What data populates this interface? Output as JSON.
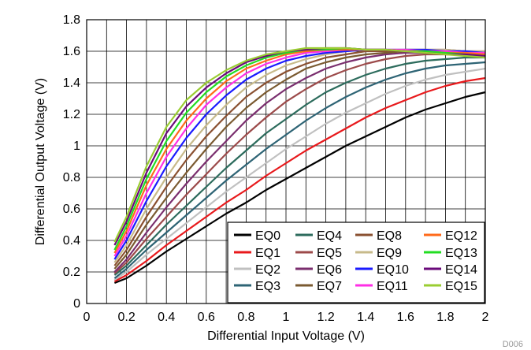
{
  "figure_id": "D006",
  "chart_data": {
    "type": "line",
    "xlabel": "Differential Input Voltage (V)",
    "ylabel": "Differential Output Voltage (V)",
    "xlim": [
      0,
      2
    ],
    "ylim": [
      0,
      1.8
    ],
    "xticks": [
      "0",
      "0.2",
      "0.4",
      "0.6",
      "0.8",
      "1",
      "1.2",
      "1.4",
      "1.6",
      "1.8",
      "2"
    ],
    "yticks": [
      "0",
      "0.2",
      "0.4",
      "0.6",
      "0.8",
      "1",
      "1.2",
      "1.4",
      "1.6",
      "1.8"
    ],
    "x_minor_step": 0.1,
    "grid": true,
    "legend_position": "bottom-right",
    "x": [
      0.14,
      0.2,
      0.3,
      0.4,
      0.5,
      0.6,
      0.7,
      0.8,
      0.9,
      1.0,
      1.1,
      1.2,
      1.3,
      1.4,
      1.5,
      1.6,
      1.7,
      1.8,
      1.9,
      2.0
    ],
    "series": [
      {
        "name": "EQ0",
        "color": "#000000",
        "values": [
          0.13,
          0.16,
          0.24,
          0.33,
          0.41,
          0.49,
          0.57,
          0.64,
          0.72,
          0.79,
          0.86,
          0.93,
          1.0,
          1.06,
          1.12,
          1.18,
          1.23,
          1.27,
          1.31,
          1.34
        ]
      },
      {
        "name": "EQ1",
        "color": "#e8191c",
        "values": [
          0.14,
          0.18,
          0.27,
          0.37,
          0.46,
          0.55,
          0.64,
          0.72,
          0.81,
          0.89,
          0.97,
          1.04,
          1.11,
          1.18,
          1.24,
          1.29,
          1.34,
          1.38,
          1.41,
          1.43
        ]
      },
      {
        "name": "EQ2",
        "color": "#c0c0c0",
        "values": [
          0.15,
          0.2,
          0.31,
          0.41,
          0.51,
          0.61,
          0.71,
          0.8,
          0.89,
          0.98,
          1.06,
          1.14,
          1.21,
          1.27,
          1.33,
          1.38,
          1.42,
          1.45,
          1.47,
          1.49
        ]
      },
      {
        "name": "EQ3",
        "color": "#2e6475",
        "values": [
          0.16,
          0.22,
          0.34,
          0.45,
          0.56,
          0.67,
          0.78,
          0.88,
          0.98,
          1.07,
          1.16,
          1.24,
          1.31,
          1.37,
          1.42,
          1.46,
          1.49,
          1.51,
          1.52,
          1.53
        ]
      },
      {
        "name": "EQ4",
        "color": "#2c6b5c",
        "values": [
          0.18,
          0.24,
          0.37,
          0.5,
          0.62,
          0.74,
          0.86,
          0.97,
          1.08,
          1.17,
          1.26,
          1.34,
          1.4,
          1.45,
          1.49,
          1.52,
          1.54,
          1.55,
          1.56,
          1.56
        ]
      },
      {
        "name": "EQ5",
        "color": "#9c4a4a",
        "values": [
          0.19,
          0.26,
          0.41,
          0.55,
          0.69,
          0.82,
          0.95,
          1.07,
          1.18,
          1.28,
          1.36,
          1.43,
          1.48,
          1.52,
          1.55,
          1.57,
          1.58,
          1.58,
          1.58,
          1.58
        ]
      },
      {
        "name": "EQ6",
        "color": "#7a2e6e",
        "values": [
          0.2,
          0.28,
          0.45,
          0.61,
          0.76,
          0.9,
          1.03,
          1.16,
          1.27,
          1.36,
          1.43,
          1.49,
          1.53,
          1.56,
          1.58,
          1.59,
          1.59,
          1.59,
          1.59,
          1.58
        ]
      },
      {
        "name": "EQ7",
        "color": "#7a5a30",
        "values": [
          0.22,
          0.31,
          0.5,
          0.67,
          0.83,
          0.98,
          1.12,
          1.24,
          1.34,
          1.42,
          1.49,
          1.53,
          1.56,
          1.58,
          1.59,
          1.6,
          1.6,
          1.6,
          1.6,
          1.59
        ]
      },
      {
        "name": "EQ8",
        "color": "#8a5030",
        "values": [
          0.24,
          0.34,
          0.55,
          0.74,
          0.91,
          1.06,
          1.19,
          1.31,
          1.4,
          1.47,
          1.52,
          1.56,
          1.58,
          1.6,
          1.6,
          1.61,
          1.61,
          1.61,
          1.6,
          1.6
        ]
      },
      {
        "name": "EQ9",
        "color": "#c7ba8a",
        "values": [
          0.26,
          0.37,
          0.6,
          0.8,
          0.98,
          1.13,
          1.26,
          1.37,
          1.45,
          1.51,
          1.55,
          1.58,
          1.6,
          1.61,
          1.61,
          1.61,
          1.61,
          1.61,
          1.6,
          1.6
        ]
      },
      {
        "name": "EQ10",
        "color": "#1a1aff",
        "values": [
          0.28,
          0.4,
          0.65,
          0.87,
          1.05,
          1.2,
          1.32,
          1.42,
          1.49,
          1.54,
          1.57,
          1.59,
          1.6,
          1.61,
          1.61,
          1.61,
          1.61,
          1.6,
          1.6,
          1.59
        ]
      },
      {
        "name": "EQ11",
        "color": "#ff2ee6",
        "values": [
          0.3,
          0.43,
          0.7,
          0.93,
          1.11,
          1.26,
          1.37,
          1.46,
          1.52,
          1.56,
          1.59,
          1.6,
          1.61,
          1.61,
          1.61,
          1.61,
          1.6,
          1.6,
          1.59,
          1.59
        ]
      },
      {
        "name": "EQ12",
        "color": "#ff6a1a",
        "values": [
          0.32,
          0.46,
          0.75,
          0.98,
          1.16,
          1.3,
          1.41,
          1.49,
          1.54,
          1.58,
          1.6,
          1.61,
          1.61,
          1.61,
          1.61,
          1.6,
          1.6,
          1.59,
          1.59,
          1.58
        ]
      },
      {
        "name": "EQ13",
        "color": "#22dd22",
        "values": [
          0.34,
          0.49,
          0.79,
          1.03,
          1.21,
          1.34,
          1.44,
          1.51,
          1.56,
          1.59,
          1.61,
          1.61,
          1.62,
          1.61,
          1.61,
          1.6,
          1.6,
          1.59,
          1.58,
          1.57
        ]
      },
      {
        "name": "EQ14",
        "color": "#6a0a7a",
        "values": [
          0.37,
          0.52,
          0.83,
          1.08,
          1.25,
          1.37,
          1.46,
          1.53,
          1.57,
          1.6,
          1.61,
          1.62,
          1.62,
          1.61,
          1.61,
          1.6,
          1.59,
          1.58,
          1.58,
          1.57
        ]
      },
      {
        "name": "EQ15",
        "color": "#9acd32",
        "values": [
          0.39,
          0.55,
          0.87,
          1.12,
          1.29,
          1.4,
          1.48,
          1.54,
          1.58,
          1.6,
          1.62,
          1.62,
          1.62,
          1.61,
          1.61,
          1.6,
          1.59,
          1.58,
          1.57,
          1.56
        ]
      }
    ]
  }
}
